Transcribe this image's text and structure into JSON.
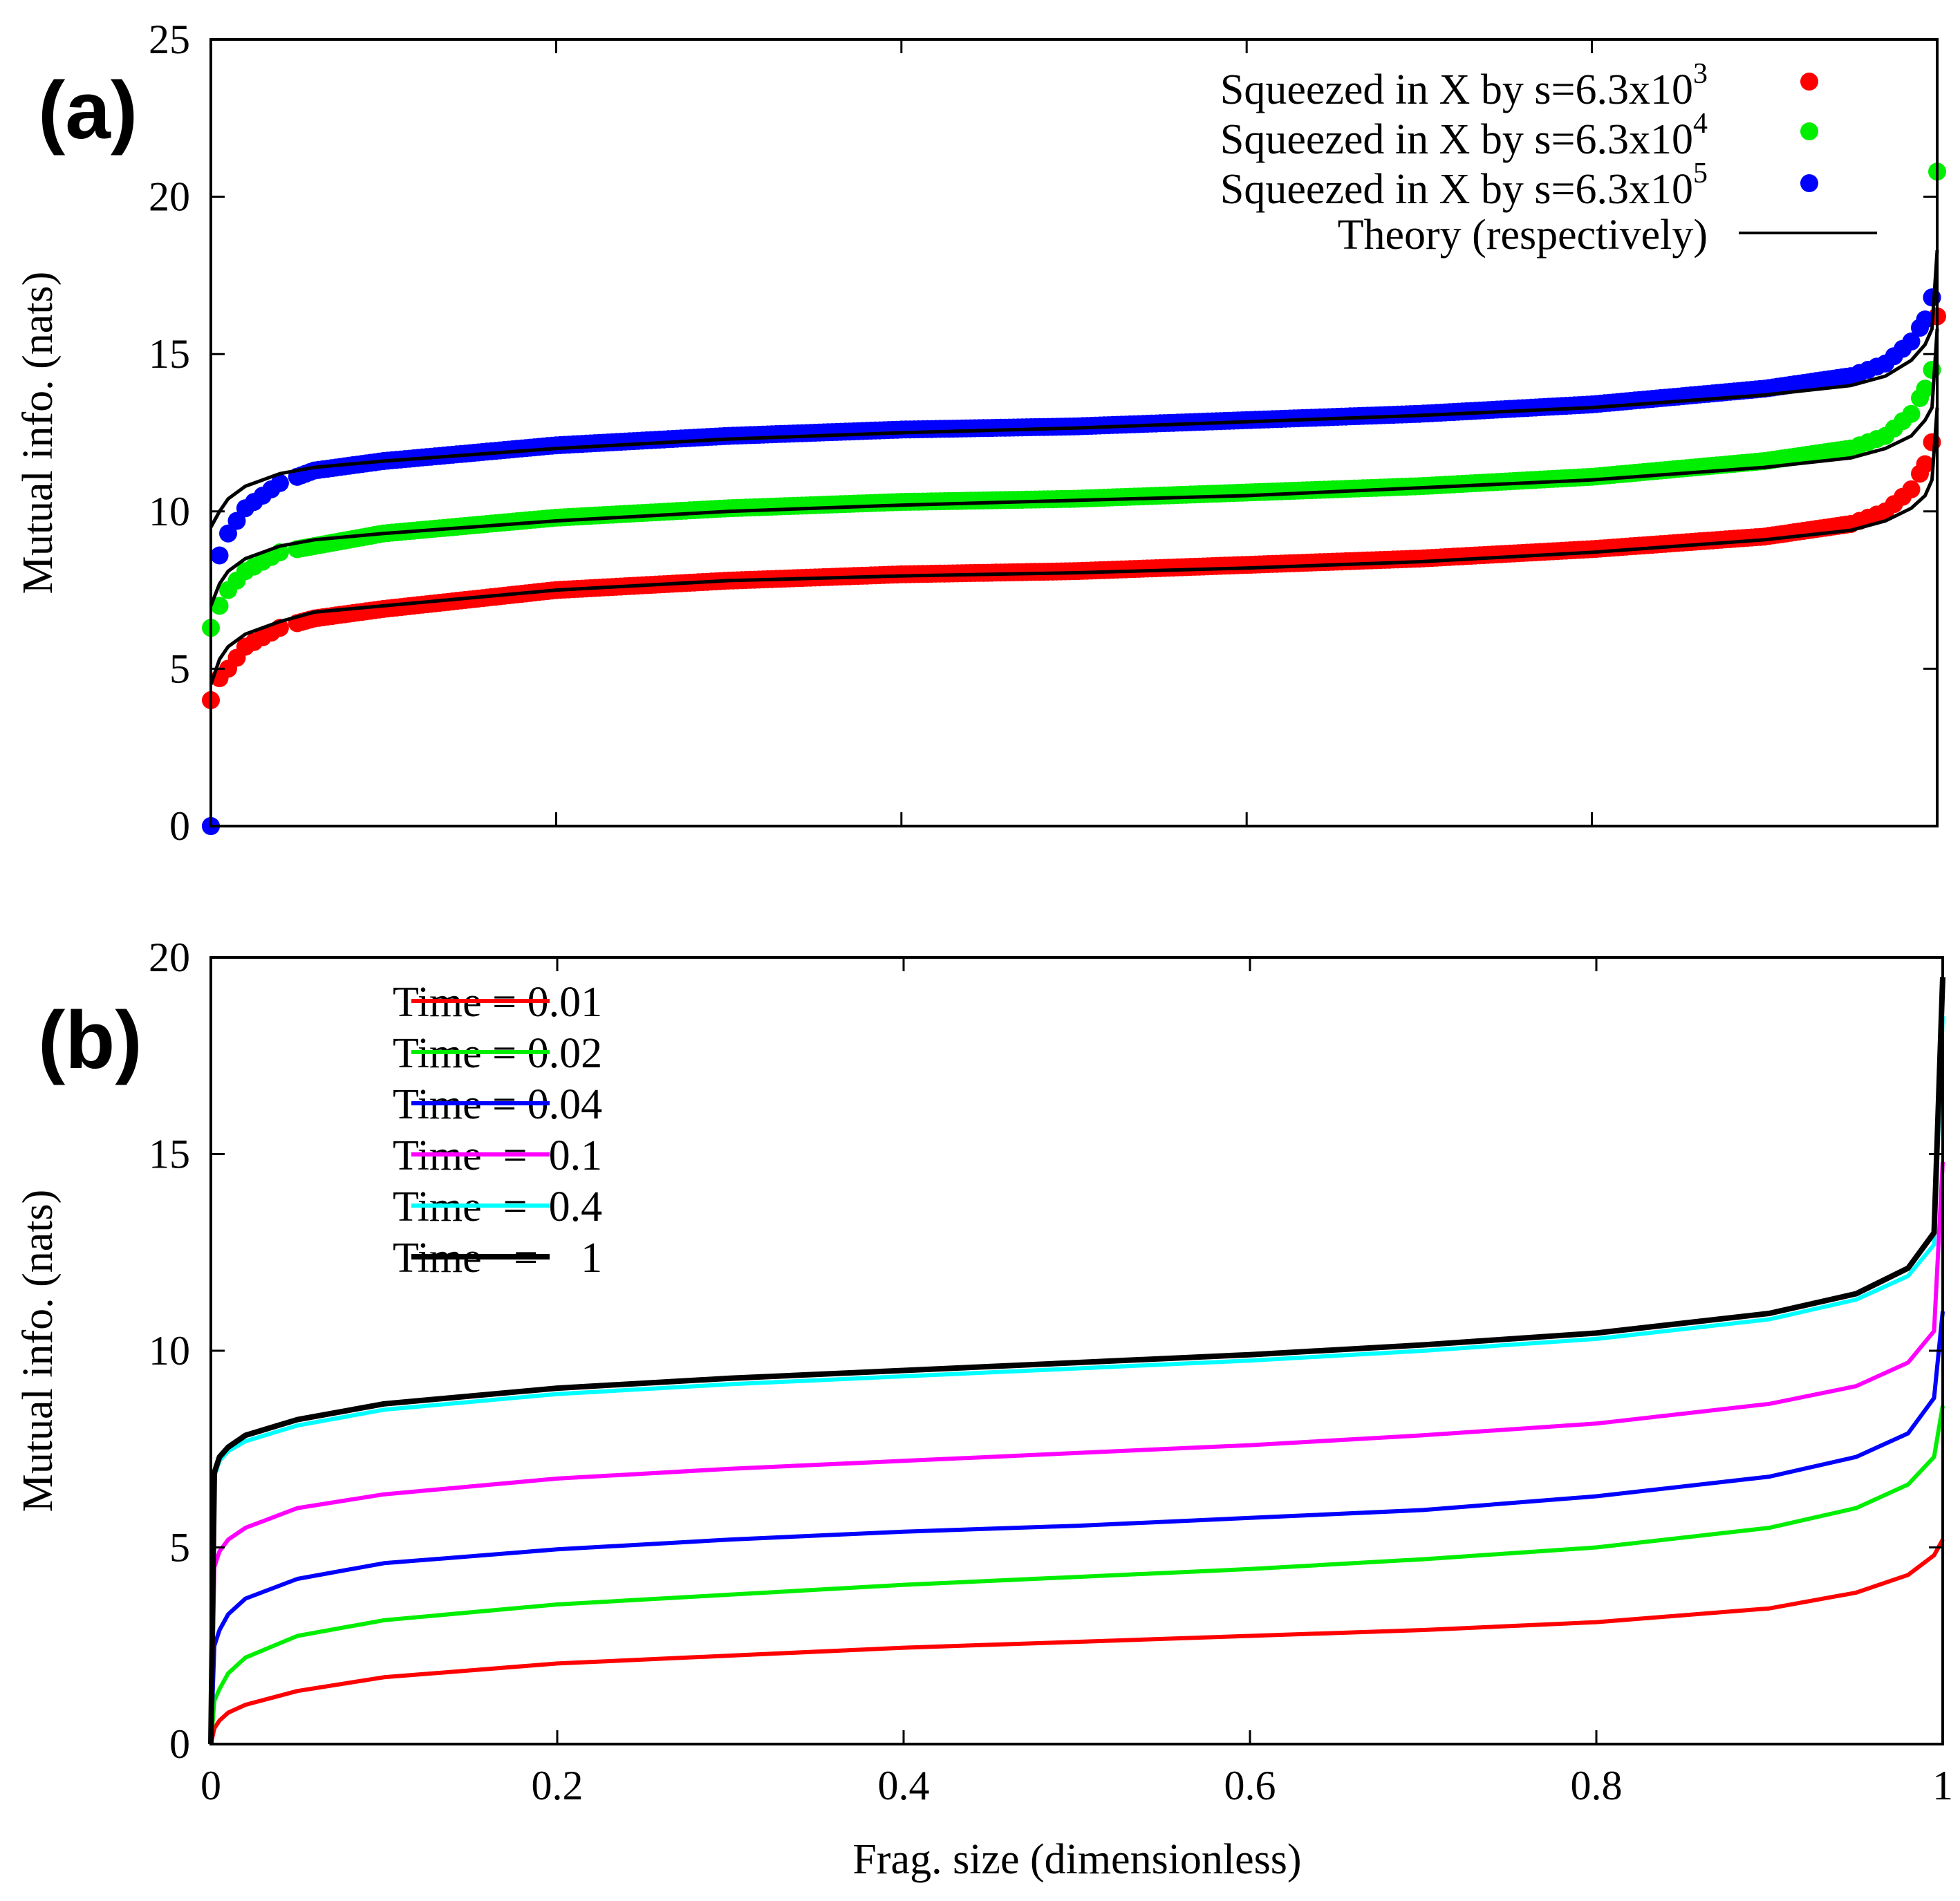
{
  "chart_data": [
    {
      "panel": "(a)",
      "type": "scatter",
      "xlabel": "",
      "ylabel": "Mutual info. (nats)",
      "xlim": [
        0,
        1
      ],
      "ylim": [
        0,
        25
      ],
      "yticks": [
        "0",
        "5",
        "10",
        "15",
        "20",
        "25"
      ],
      "grid": false,
      "legend_position": "top-right",
      "series": [
        {
          "name": "Squeezed in X by s=6.3x10",
          "exponent": "3",
          "color": "#ff0000",
          "plateau": 8.1,
          "points": [
            [
              0.0,
              4.0
            ],
            [
              0.005,
              4.7
            ],
            [
              0.01,
              5.0
            ],
            [
              0.02,
              5.7
            ],
            [
              0.04,
              6.3
            ],
            [
              0.06,
              6.6
            ],
            [
              0.1,
              6.9
            ],
            [
              0.2,
              7.5
            ],
            [
              0.3,
              7.8
            ],
            [
              0.4,
              8.0
            ],
            [
              0.5,
              8.1
            ],
            [
              0.6,
              8.3
            ],
            [
              0.7,
              8.5
            ],
            [
              0.8,
              8.8
            ],
            [
              0.9,
              9.2
            ],
            [
              0.95,
              9.6
            ],
            [
              0.97,
              10.0
            ],
            [
              0.985,
              10.7
            ],
            [
              0.993,
              11.5
            ],
            [
              0.997,
              12.2
            ],
            [
              1.0,
              16.2
            ]
          ]
        },
        {
          "name": "Squeezed in X by s=6.3x10",
          "exponent": "4",
          "color": "#00ee00",
          "plateau": 10.4,
          "points": [
            [
              0.0,
              6.3
            ],
            [
              0.005,
              7.0
            ],
            [
              0.01,
              7.5
            ],
            [
              0.02,
              8.1
            ],
            [
              0.04,
              8.7
            ],
            [
              0.06,
              8.9
            ],
            [
              0.1,
              9.3
            ],
            [
              0.2,
              9.8
            ],
            [
              0.3,
              10.1
            ],
            [
              0.4,
              10.3
            ],
            [
              0.5,
              10.4
            ],
            [
              0.6,
              10.6
            ],
            [
              0.7,
              10.8
            ],
            [
              0.8,
              11.1
            ],
            [
              0.9,
              11.6
            ],
            [
              0.95,
              12.0
            ],
            [
              0.97,
              12.4
            ],
            [
              0.985,
              13.1
            ],
            [
              0.993,
              13.9
            ],
            [
              0.997,
              14.5
            ],
            [
              1.0,
              20.8
            ]
          ]
        },
        {
          "name": "Squeezed in X by s=6.3x10",
          "exponent": "5",
          "color": "#0000ff",
          "plateau": 12.7,
          "points": [
            [
              0.0,
              0.0
            ],
            [
              0.005,
              8.6
            ],
            [
              0.01,
              9.3
            ],
            [
              0.02,
              10.1
            ],
            [
              0.04,
              10.9
            ],
            [
              0.06,
              11.3
            ],
            [
              0.1,
              11.6
            ],
            [
              0.2,
              12.1
            ],
            [
              0.3,
              12.4
            ],
            [
              0.4,
              12.6
            ],
            [
              0.5,
              12.7
            ],
            [
              0.6,
              12.9
            ],
            [
              0.7,
              13.1
            ],
            [
              0.8,
              13.4
            ],
            [
              0.9,
              13.9
            ],
            [
              0.95,
              14.3
            ],
            [
              0.97,
              14.7
            ],
            [
              0.985,
              15.4
            ],
            [
              0.993,
              16.1
            ],
            [
              0.997,
              16.8
            ]
          ]
        },
        {
          "name": "Theory (respectively)",
          "color": "#000000",
          "kind": "line",
          "curves": [
            {
              "plateau": 8.1,
              "points": [
                [
                  0.0,
                  4.5
                ],
                [
                  0.005,
                  5.3
                ],
                [
                  0.01,
                  5.7
                ],
                [
                  0.02,
                  6.1
                ],
                [
                  0.04,
                  6.5
                ],
                [
                  0.06,
                  6.8
                ],
                [
                  0.1,
                  7.0
                ],
                [
                  0.2,
                  7.5
                ],
                [
                  0.3,
                  7.8
                ],
                [
                  0.4,
                  7.95
                ],
                [
                  0.5,
                  8.05
                ],
                [
                  0.6,
                  8.2
                ],
                [
                  0.7,
                  8.4
                ],
                [
                  0.8,
                  8.7
                ],
                [
                  0.9,
                  9.1
                ],
                [
                  0.95,
                  9.4
                ],
                [
                  0.97,
                  9.7
                ],
                [
                  0.985,
                  10.1
                ],
                [
                  0.993,
                  10.5
                ],
                [
                  0.997,
                  11.0
                ],
                [
                  1.0,
                  13.3
                ]
              ]
            },
            {
              "plateau": 10.4,
              "points": [
                [
                  0.0,
                  7.0
                ],
                [
                  0.005,
                  7.7
                ],
                [
                  0.01,
                  8.1
                ],
                [
                  0.02,
                  8.5
                ],
                [
                  0.04,
                  8.9
                ],
                [
                  0.06,
                  9.1
                ],
                [
                  0.1,
                  9.3
                ],
                [
                  0.2,
                  9.7
                ],
                [
                  0.3,
                  10.0
                ],
                [
                  0.4,
                  10.2
                ],
                [
                  0.5,
                  10.35
                ],
                [
                  0.6,
                  10.5
                ],
                [
                  0.7,
                  10.75
                ],
                [
                  0.8,
                  11.0
                ],
                [
                  0.9,
                  11.4
                ],
                [
                  0.95,
                  11.7
                ],
                [
                  0.97,
                  12.0
                ],
                [
                  0.985,
                  12.4
                ],
                [
                  0.993,
                  12.9
                ],
                [
                  0.997,
                  13.3
                ],
                [
                  1.0,
                  15.8
                ]
              ]
            },
            {
              "plateau": 12.7,
              "points": [
                [
                  0.0,
                  9.5
                ],
                [
                  0.005,
                  10.0
                ],
                [
                  0.01,
                  10.4
                ],
                [
                  0.02,
                  10.8
                ],
                [
                  0.04,
                  11.2
                ],
                [
                  0.06,
                  11.4
                ],
                [
                  0.1,
                  11.6
                ],
                [
                  0.2,
                  12.0
                ],
                [
                  0.3,
                  12.3
                ],
                [
                  0.4,
                  12.5
                ],
                [
                  0.5,
                  12.65
                ],
                [
                  0.6,
                  12.85
                ],
                [
                  0.7,
                  13.05
                ],
                [
                  0.8,
                  13.3
                ],
                [
                  0.9,
                  13.7
                ],
                [
                  0.95,
                  14.0
                ],
                [
                  0.97,
                  14.3
                ],
                [
                  0.985,
                  14.8
                ],
                [
                  0.993,
                  15.3
                ],
                [
                  0.997,
                  15.8
                ],
                [
                  1.0,
                  18.3
                ]
              ]
            }
          ]
        }
      ]
    },
    {
      "panel": "(b)",
      "type": "line",
      "xlabel": "Frag. size (dimensionless)",
      "ylabel": "Mutual info. (nats)",
      "xlim": [
        0,
        1
      ],
      "ylim": [
        0,
        20
      ],
      "xticks": [
        "0",
        "0.2",
        "0.4",
        "0.6",
        "0.8",
        "1"
      ],
      "yticks": [
        "0",
        "5",
        "10",
        "15",
        "20"
      ],
      "grid": false,
      "legend_position": "top-left",
      "series": [
        {
          "name": "Time = 0.01",
          "color": "#ff0000",
          "width": 6,
          "points": [
            [
              0.0,
              0.0
            ],
            [
              0.002,
              0.4
            ],
            [
              0.005,
              0.6
            ],
            [
              0.01,
              0.8
            ],
            [
              0.02,
              1.0
            ],
            [
              0.05,
              1.35
            ],
            [
              0.1,
              1.7
            ],
            [
              0.2,
              2.05
            ],
            [
              0.3,
              2.25
            ],
            [
              0.4,
              2.45
            ],
            [
              0.5,
              2.6
            ],
            [
              0.6,
              2.75
            ],
            [
              0.7,
              2.9
            ],
            [
              0.8,
              3.1
            ],
            [
              0.9,
              3.45
            ],
            [
              0.95,
              3.85
            ],
            [
              0.98,
              4.3
            ],
            [
              0.995,
              4.8
            ],
            [
              1.0,
              5.2
            ]
          ]
        },
        {
          "name": "Time = 0.02",
          "color": "#00ee00",
          "width": 6,
          "points": [
            [
              0.0,
              0.0
            ],
            [
              0.002,
              1.1
            ],
            [
              0.005,
              1.4
            ],
            [
              0.01,
              1.8
            ],
            [
              0.02,
              2.2
            ],
            [
              0.05,
              2.75
            ],
            [
              0.1,
              3.15
            ],
            [
              0.2,
              3.55
            ],
            [
              0.3,
              3.8
            ],
            [
              0.4,
              4.05
            ],
            [
              0.5,
              4.25
            ],
            [
              0.6,
              4.45
            ],
            [
              0.7,
              4.7
            ],
            [
              0.8,
              5.0
            ],
            [
              0.9,
              5.5
            ],
            [
              0.95,
              6.0
            ],
            [
              0.98,
              6.6
            ],
            [
              0.995,
              7.3
            ],
            [
              1.0,
              8.6
            ]
          ]
        },
        {
          "name": "Time = 0.04",
          "color": "#0000ff",
          "width": 6,
          "points": [
            [
              0.0,
              0.0
            ],
            [
              0.002,
              2.5
            ],
            [
              0.005,
              2.9
            ],
            [
              0.01,
              3.3
            ],
            [
              0.02,
              3.7
            ],
            [
              0.05,
              4.2
            ],
            [
              0.1,
              4.6
            ],
            [
              0.2,
              4.95
            ],
            [
              0.3,
              5.2
            ],
            [
              0.4,
              5.4
            ],
            [
              0.5,
              5.55
            ],
            [
              0.6,
              5.75
            ],
            [
              0.7,
              5.95
            ],
            [
              0.8,
              6.3
            ],
            [
              0.9,
              6.8
            ],
            [
              0.95,
              7.3
            ],
            [
              0.98,
              7.9
            ],
            [
              0.995,
              8.8
            ],
            [
              1.0,
              11.0
            ]
          ]
        },
        {
          "name": "Time  =  0.1",
          "color": "#ff00ff",
          "width": 6,
          "points": [
            [
              0.0,
              0.0
            ],
            [
              0.002,
              4.5
            ],
            [
              0.005,
              4.9
            ],
            [
              0.01,
              5.2
            ],
            [
              0.02,
              5.5
            ],
            [
              0.05,
              6.0
            ],
            [
              0.1,
              6.35
            ],
            [
              0.2,
              6.75
            ],
            [
              0.3,
              7.0
            ],
            [
              0.4,
              7.2
            ],
            [
              0.5,
              7.4
            ],
            [
              0.6,
              7.6
            ],
            [
              0.7,
              7.85
            ],
            [
              0.8,
              8.15
            ],
            [
              0.9,
              8.65
            ],
            [
              0.95,
              9.1
            ],
            [
              0.98,
              9.7
            ],
            [
              0.995,
              10.5
            ],
            [
              1.0,
              14.8
            ]
          ]
        },
        {
          "name": "Time  =  0.4",
          "color": "#00ffff",
          "width": 6,
          "points": [
            [
              0.0,
              0.0
            ],
            [
              0.002,
              6.8
            ],
            [
              0.005,
              7.2
            ],
            [
              0.01,
              7.45
            ],
            [
              0.02,
              7.7
            ],
            [
              0.05,
              8.1
            ],
            [
              0.1,
              8.5
            ],
            [
              0.2,
              8.9
            ],
            [
              0.3,
              9.15
            ],
            [
              0.4,
              9.35
            ],
            [
              0.5,
              9.55
            ],
            [
              0.6,
              9.75
            ],
            [
              0.7,
              10.0
            ],
            [
              0.8,
              10.3
            ],
            [
              0.9,
              10.8
            ],
            [
              0.95,
              11.3
            ],
            [
              0.98,
              11.9
            ],
            [
              0.995,
              12.7
            ],
            [
              1.0,
              18.5
            ]
          ]
        },
        {
          "name": "Time   =    1",
          "color": "#000000",
          "width": 8,
          "points": [
            [
              0.0,
              0.0
            ],
            [
              0.002,
              6.9
            ],
            [
              0.005,
              7.3
            ],
            [
              0.01,
              7.55
            ],
            [
              0.02,
              7.85
            ],
            [
              0.05,
              8.25
            ],
            [
              0.1,
              8.65
            ],
            [
              0.2,
              9.05
            ],
            [
              0.3,
              9.3
            ],
            [
              0.4,
              9.5
            ],
            [
              0.5,
              9.7
            ],
            [
              0.6,
              9.9
            ],
            [
              0.7,
              10.15
            ],
            [
              0.8,
              10.45
            ],
            [
              0.9,
              10.95
            ],
            [
              0.95,
              11.45
            ],
            [
              0.98,
              12.1
            ],
            [
              0.995,
              13.0
            ],
            [
              1.0,
              19.5
            ]
          ]
        }
      ]
    }
  ]
}
